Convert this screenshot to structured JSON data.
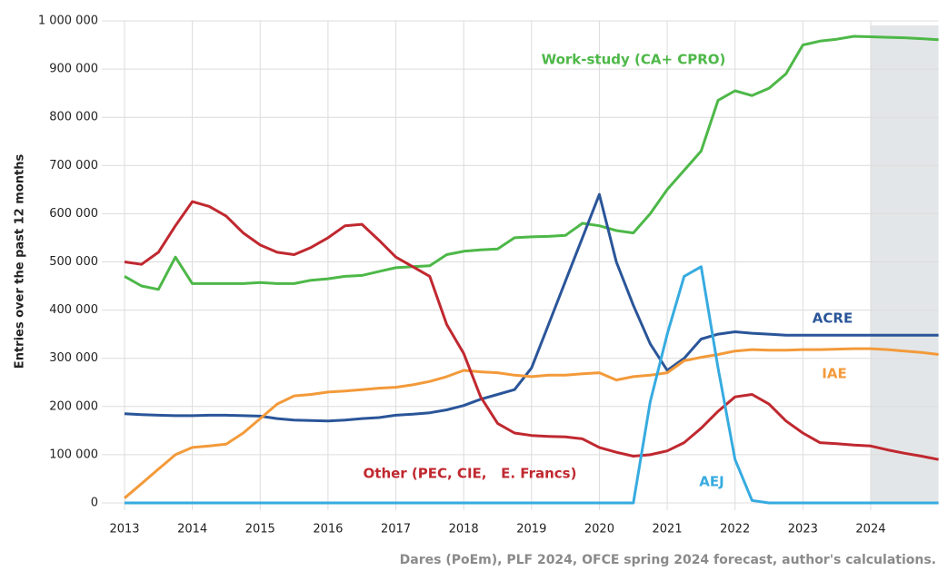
{
  "chart_data": {
    "type": "line",
    "y_label": "Entries over the past 12 months",
    "source": "Dares (PoEm), PLF 2024, OFCE spring 2024 forecast, author's calculations.",
    "xlim": [
      2013,
      2025
    ],
    "xticks": [
      2013,
      2014,
      2015,
      2016,
      2017,
      2018,
      2019,
      2020,
      2021,
      2022,
      2023,
      2024
    ],
    "ylim": [
      0,
      1000000
    ],
    "yticks": [
      0,
      {
        "value": 100000,
        "label": "100 000"
      },
      {
        "value": 200000,
        "label": "200 000"
      },
      {
        "value": 300000,
        "label": "300 000"
      },
      {
        "value": 400000,
        "label": "400 000"
      },
      {
        "value": 500000,
        "label": "500 000"
      },
      {
        "value": 600000,
        "label": "600 000"
      },
      {
        "value": 700000,
        "label": "700 000"
      },
      {
        "value": 800000,
        "label": "800 000"
      },
      {
        "value": 900000,
        "label": "900 000"
      },
      {
        "value": 1000000,
        "label": "1 000 000"
      }
    ],
    "grid": true,
    "shaded_range": [
      2024,
      2025
    ],
    "shade_color": "#e3e6e8",
    "x": [
      2013,
      2013.25,
      2013.5,
      2013.75,
      2014,
      2014.25,
      2014.5,
      2014.75,
      2015,
      2015.25,
      2015.5,
      2015.75,
      2016,
      2016.25,
      2016.5,
      2016.75,
      2017,
      2017.25,
      2017.5,
      2017.75,
      2018,
      2018.25,
      2018.5,
      2018.75,
      2019,
      2019.25,
      2019.5,
      2019.75,
      2020,
      2020.25,
      2020.5,
      2020.75,
      2021,
      2021.25,
      2021.5,
      2021.75,
      2022,
      2022.25,
      2022.5,
      2022.75,
      2023,
      2023.25,
      2023.5,
      2023.75,
      2024,
      2024.25,
      2024.5,
      2024.75,
      2025
    ],
    "series": [
      {
        "name": "Work-study (CA+ CPRO)",
        "color": "#4db848",
        "values": [
          470000,
          450000,
          443000,
          510000,
          455000,
          455000,
          455000,
          455000,
          457000,
          455000,
          455000,
          462000,
          465000,
          470000,
          472000,
          480000,
          488000,
          490000,
          492000,
          515000,
          522000,
          525000,
          527000,
          550000,
          552000,
          553000,
          555000,
          580000,
          575000,
          565000,
          560000,
          600000,
          650000,
          690000,
          730000,
          835000,
          855000,
          845000,
          860000,
          890000,
          950000,
          958000,
          962000,
          968000,
          967000,
          966000,
          965000,
          963000,
          961000
        ]
      },
      {
        "name": "ACRE",
        "color": "#2a5599",
        "values": [
          185000,
          183000,
          182000,
          181000,
          181000,
          182000,
          182000,
          181000,
          180000,
          175000,
          172000,
          171000,
          170000,
          172000,
          175000,
          177000,
          182000,
          184000,
          187000,
          193000,
          202000,
          215000,
          225000,
          235000,
          280000,
          370000,
          460000,
          550000,
          640000,
          500000,
          410000,
          330000,
          275000,
          300000,
          340000,
          350000,
          355000,
          352000,
          350000,
          348000,
          348000,
          348000,
          348000,
          348000,
          348000,
          348000,
          348000,
          348000,
          348000
        ]
      },
      {
        "name": "IAE",
        "color": "#f39a3a",
        "values": [
          10000,
          40000,
          70000,
          100000,
          115000,
          118000,
          122000,
          145000,
          175000,
          205000,
          222000,
          225000,
          230000,
          232000,
          235000,
          238000,
          240000,
          245000,
          252000,
          262000,
          275000,
          272000,
          270000,
          265000,
          262000,
          265000,
          265000,
          268000,
          270000,
          255000,
          262000,
          265000,
          270000,
          295000,
          302000,
          308000,
          315000,
          318000,
          317000,
          317000,
          318000,
          318000,
          319000,
          320000,
          320000,
          318000,
          315000,
          312000,
          308000
        ]
      },
      {
        "name": "Other (PEC, CIE,   E. Francs)",
        "color": "#c0282f",
        "values": [
          500000,
          495000,
          520000,
          575000,
          625000,
          615000,
          595000,
          560000,
          535000,
          520000,
          515000,
          530000,
          550000,
          575000,
          578000,
          545000,
          510000,
          490000,
          470000,
          370000,
          310000,
          220000,
          165000,
          145000,
          140000,
          138000,
          137000,
          133000,
          115000,
          105000,
          97000,
          100000,
          108000,
          125000,
          155000,
          190000,
          220000,
          225000,
          205000,
          170000,
          145000,
          125000,
          123000,
          120000,
          118000,
          110000,
          103000,
          97000,
          90000
        ]
      },
      {
        "name": "AEJ",
        "color": "#36abe0",
        "values": [
          0,
          0,
          0,
          0,
          0,
          0,
          0,
          0,
          0,
          0,
          0,
          0,
          0,
          0,
          0,
          0,
          0,
          0,
          0,
          0,
          0,
          0,
          0,
          0,
          0,
          0,
          0,
          0,
          0,
          0,
          0,
          210000,
          350000,
          470000,
          490000,
          280000,
          90000,
          5000,
          0,
          0,
          0,
          0,
          0,
          0,
          0,
          0,
          0,
          0,
          0
        ]
      }
    ]
  }
}
